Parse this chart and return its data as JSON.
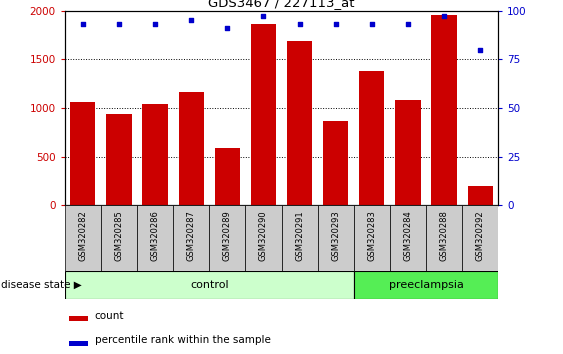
{
  "title": "GDS3467 / 227113_at",
  "samples": [
    "GSM320282",
    "GSM320285",
    "GSM320286",
    "GSM320287",
    "GSM320289",
    "GSM320290",
    "GSM320291",
    "GSM320293",
    "GSM320283",
    "GSM320284",
    "GSM320288",
    "GSM320292"
  ],
  "counts": [
    1060,
    940,
    1040,
    1160,
    590,
    1860,
    1690,
    870,
    1380,
    1080,
    1960,
    200
  ],
  "percentiles": [
    93,
    93,
    93,
    95,
    91,
    97,
    93,
    93,
    93,
    93,
    97,
    80
  ],
  "groups": [
    "control",
    "control",
    "control",
    "control",
    "control",
    "control",
    "control",
    "control",
    "preeclampsia",
    "preeclampsia",
    "preeclampsia",
    "preeclampsia"
  ],
  "bar_color": "#cc0000",
  "dot_color": "#0000cc",
  "ylim_left": [
    0,
    2000
  ],
  "ylim_right": [
    0,
    100
  ],
  "yticks_left": [
    0,
    500,
    1000,
    1500,
    2000
  ],
  "yticks_right": [
    0,
    25,
    50,
    75,
    100
  ],
  "control_color": "#ccffcc",
  "preeclampsia_color": "#55ee55",
  "label_bg_color": "#cccccc",
  "legend_count_label": "count",
  "legend_percentile_label": "percentile rank within the sample",
  "disease_state_label": "disease state",
  "control_label": "control",
  "preeclampsia_label": "preeclampsia",
  "figsize": [
    5.63,
    3.54
  ],
  "dpi": 100
}
